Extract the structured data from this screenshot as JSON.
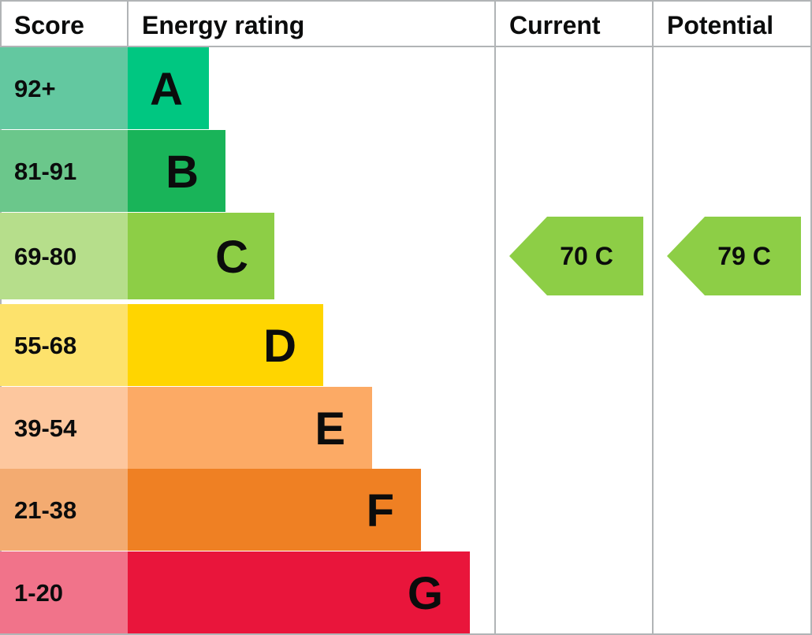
{
  "chart_data": {
    "type": "table",
    "columns": {
      "score": "Score",
      "rating": "Energy rating",
      "current": "Current",
      "potential": "Potential"
    },
    "bands": [
      {
        "score": "92+",
        "letter": "A",
        "color": "#00c781",
        "score_color": "#63c8a0"
      },
      {
        "score": "81-91",
        "letter": "B",
        "color": "#19b459",
        "score_color": "#6bc78b"
      },
      {
        "score": "69-80",
        "letter": "C",
        "color": "#8dce46",
        "score_color": "#b6de8b"
      },
      {
        "score": "55-68",
        "letter": "D",
        "color": "#ffd500",
        "score_color": "#fde26c"
      },
      {
        "score": "39-54",
        "letter": "E",
        "color": "#fcaa65",
        "score_color": "#fdc79e"
      },
      {
        "score": "21-38",
        "letter": "F",
        "color": "#ef8023",
        "score_color": "#f3ab71"
      },
      {
        "score": "1-20",
        "letter": "G",
        "color": "#e9153b",
        "score_color": "#f1738a"
      }
    ],
    "current": {
      "value": 70,
      "band": "C",
      "label": "70 C",
      "color": "#8dce46"
    },
    "potential": {
      "value": 79,
      "band": "C",
      "label": "79 C",
      "color": "#8dce46"
    },
    "grid_color": "#b1b4b6"
  }
}
